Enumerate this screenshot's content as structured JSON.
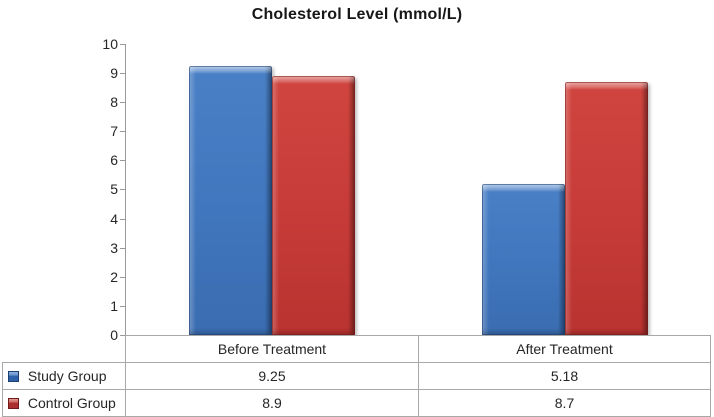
{
  "chart_data": {
    "type": "bar",
    "title": "Cholesterol Level (mmol/L)",
    "categories": [
      "Before Treatment",
      "After Treatment"
    ],
    "series": [
      {
        "name": "Study Group",
        "color": "#4076BD",
        "values": [
          9.25,
          5.18
        ]
      },
      {
        "name": "Control Group",
        "color": "#C63B38",
        "values": [
          8.9,
          8.7
        ]
      }
    ],
    "ylim": [
      0,
      10
    ],
    "yticks": [
      "0",
      "1",
      "2",
      "3",
      "4",
      "5",
      "6",
      "7",
      "8",
      "9",
      "10"
    ],
    "xlabel": "",
    "ylabel": "",
    "grid": false,
    "legend_position": "left-of-data-table",
    "data_table_shown": true
  },
  "data_table": {
    "column_headers": [
      "Before Treatment",
      "After Treatment"
    ],
    "rows": [
      {
        "label": "Study Group",
        "marker_color": "#2E61A8",
        "values": [
          "9.25",
          "5.18"
        ]
      },
      {
        "label": "Control Group",
        "marker_color": "#AB2F2C",
        "values": [
          "8.9",
          "8.7"
        ]
      }
    ]
  },
  "colors": {
    "axis": "#9A9A9A",
    "table_border": "#A8A8A8",
    "text": "#262626",
    "background": "#FFFFFF",
    "series_blue": "#4076BD",
    "series_red": "#C63B38"
  }
}
